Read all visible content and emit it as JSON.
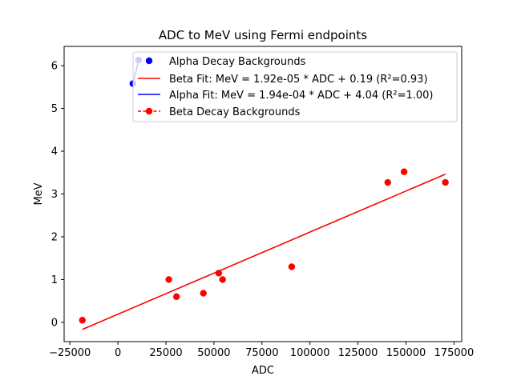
{
  "chart_data": {
    "type": "scatter",
    "title": "ADC to MeV using Fermi endpoints",
    "xlabel": "ADC",
    "ylabel": "MeV",
    "xlim": [
      -28000,
      179000
    ],
    "ylim": [
      -0.45,
      6.45
    ],
    "xticks": [
      -25000,
      0,
      25000,
      50000,
      75000,
      100000,
      125000,
      150000,
      175000
    ],
    "xtick_labels": [
      "−25000",
      "0",
      "25000",
      "50000",
      "75000",
      "100000",
      "125000",
      "150000",
      "175000"
    ],
    "yticks": [
      0,
      1,
      2,
      3,
      4,
      5,
      6
    ],
    "ytick_labels": [
      "0",
      "1",
      "2",
      "3",
      "4",
      "5",
      "6"
    ],
    "grid": false,
    "legend_position": "top-right",
    "series": [
      {
        "name": "Alpha Decay Backgrounds",
        "kind": "points",
        "color": "#0000ff",
        "points": [
          [
            7800,
            5.58
          ],
          [
            10800,
            6.13
          ]
        ]
      },
      {
        "name": "Beta Fit: MeV = 1.92e-05 * ADC + 0.19 (R²=0.93)",
        "kind": "fit-line",
        "color": "#ff0000",
        "slope": 1.92e-05,
        "intercept": 0.19,
        "x_range": [
          -18500,
          170500
        ]
      },
      {
        "name": "Alpha Fit: MeV = 1.94e-04 * ADC + 4.04 (R²=1.00)",
        "kind": "fit-line",
        "color": "#0000ff",
        "slope": 0.000194,
        "intercept": 4.04,
        "x_range": [
          7800,
          10800
        ]
      },
      {
        "name": "Beta Decay Backgrounds",
        "kind": "points",
        "color": "#ff0000",
        "points": [
          [
            -18500,
            0.05
          ],
          [
            26500,
            1.0
          ],
          [
            30500,
            0.6
          ],
          [
            44500,
            0.68
          ],
          [
            52500,
            1.15
          ],
          [
            54500,
            1.0
          ],
          [
            90500,
            1.3
          ],
          [
            140500,
            3.27
          ],
          [
            149000,
            3.52
          ],
          [
            170500,
            3.27
          ]
        ]
      }
    ]
  }
}
